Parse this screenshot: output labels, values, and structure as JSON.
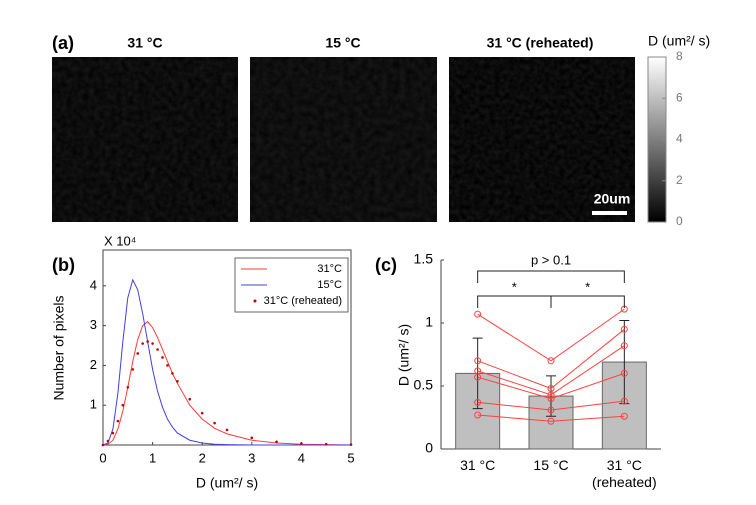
{
  "chart_data": [
    {
      "type": "image",
      "label": "(a)",
      "titles": [
        "31 °C",
        "15 °C",
        "31 °C (reheated)"
      ],
      "colorbar_label": "D (um²/ s)",
      "clim": [
        0,
        8
      ],
      "cticks": [
        0,
        2,
        4,
        6,
        8
      ],
      "scalebar": "20um"
    },
    {
      "type": "line",
      "label": "(b)",
      "ylabel": "Number of pixels",
      "xlabel": "D (um²/ s)",
      "yscale_label": "X 10⁴",
      "x": [
        0,
        0.1,
        0.2,
        0.3,
        0.4,
        0.5,
        0.6,
        0.7,
        0.8,
        0.9,
        1.0,
        1.1,
        1.2,
        1.3,
        1.4,
        1.5,
        1.75,
        2,
        2.25,
        2.5,
        3,
        3.5,
        4,
        4.5,
        5
      ],
      "series": [
        {
          "name": "31°C",
          "color": "#ff3b3b",
          "style": "line",
          "values": [
            0,
            0.02,
            0.12,
            0.4,
            0.85,
            1.45,
            2.1,
            2.65,
            3.0,
            3.1,
            2.95,
            2.7,
            2.4,
            2.1,
            1.8,
            1.55,
            1.0,
            0.65,
            0.42,
            0.28,
            0.12,
            0.05,
            0.02,
            0.01,
            0
          ]
        },
        {
          "name": "15°C",
          "color": "#4040e0",
          "style": "line",
          "values": [
            0,
            0.05,
            0.4,
            1.3,
            2.6,
            3.7,
            4.15,
            3.9,
            3.3,
            2.6,
            1.9,
            1.35,
            0.95,
            0.65,
            0.45,
            0.3,
            0.12,
            0.05,
            0.02,
            0.01,
            0,
            0,
            0,
            0,
            0
          ]
        },
        {
          "name": "31°C (reheated)",
          "color": "#c00000",
          "style": "dots",
          "values": [
            0,
            0.1,
            0.3,
            0.6,
            1.0,
            1.45,
            1.9,
            2.3,
            2.55,
            2.6,
            2.55,
            2.4,
            2.2,
            2.0,
            1.8,
            1.6,
            1.15,
            0.8,
            0.55,
            0.38,
            0.18,
            0.08,
            0.04,
            0.02,
            0.01
          ]
        }
      ],
      "xlim": [
        0,
        5
      ],
      "xticks": [
        0,
        1,
        2,
        3,
        4,
        5
      ],
      "ylim": [
        0,
        4.9
      ],
      "yticks": [
        1,
        2,
        3,
        4
      ],
      "legend": "upper right"
    },
    {
      "type": "bar",
      "label": "(c)",
      "ylabel": "D (um²/ s)",
      "categories": [
        "31 °C",
        "15 °C",
        "31 °C (reheated)"
      ],
      "values": [
        0.6,
        0.42,
        0.69
      ],
      "errors": [
        0.28,
        0.16,
        0.33
      ],
      "color": "#bfbfbf",
      "subjects": [
        {
          "values": [
            1.07,
            0.7,
            1.11
          ]
        },
        {
          "values": [
            0.7,
            0.48,
            0.95
          ]
        },
        {
          "values": [
            0.62,
            0.43,
            0.82
          ]
        },
        {
          "values": [
            0.57,
            0.4,
            0.6
          ]
        },
        {
          "values": [
            0.37,
            0.31,
            0.38
          ]
        },
        {
          "values": [
            0.27,
            0.22,
            0.26
          ]
        }
      ],
      "subject_color": "#ff4040",
      "annotations": [
        "*",
        "*",
        "p > 0.1"
      ],
      "ylim": [
        0,
        1.5
      ],
      "yticks": [
        0,
        0.5,
        1,
        1.5
      ]
    }
  ]
}
